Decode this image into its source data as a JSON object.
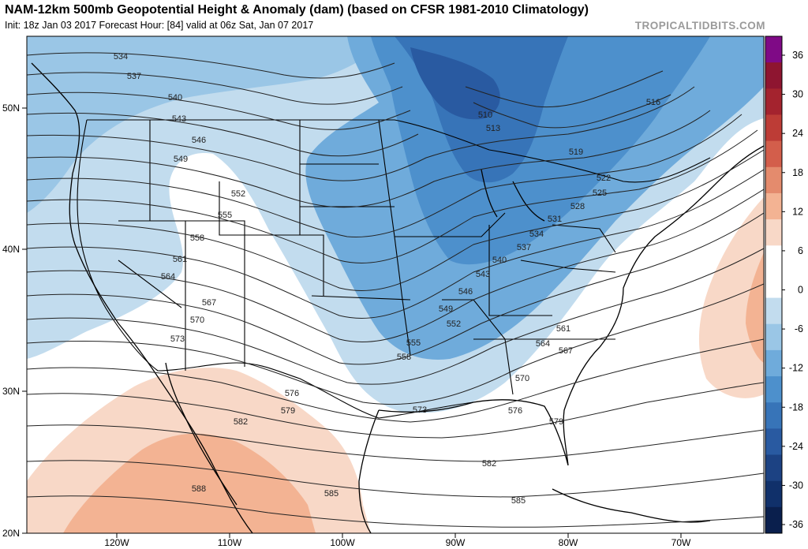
{
  "header": {
    "title": "NAM-12km 500mb Geopotential Height & Anomaly (dam) (based on CFSR 1981-2010 Climatology)",
    "subtitle": "Init: 18z Jan 03 2017   Forecast Hour: [84]   valid at 06z Sat, Jan 07 2017",
    "brand": "TROPICALTIDBITS.COM"
  },
  "axes": {
    "lat_labels": [
      "50N",
      "40N",
      "30N",
      "20N"
    ],
    "lon_labels": [
      "120W",
      "110W",
      "100W",
      "90W",
      "80W",
      "70W"
    ]
  },
  "colorbar": {
    "labels": [
      "36",
      "30",
      "24",
      "18",
      "12",
      "6",
      "0",
      "-6",
      "-12",
      "-18",
      "-24",
      "-30",
      "-36"
    ],
    "colors": [
      "#7f0a86",
      "#8e1530",
      "#a4232e",
      "#bd3c36",
      "#d35e4b",
      "#e48b6d",
      "#f3b393",
      "#f8d8c7",
      "#ffffff",
      "#ffffff",
      "#c2dcee",
      "#9ac6e6",
      "#6fabdb",
      "#4d90cc",
      "#3774b8",
      "#295aa1",
      "#1c4283",
      "#10306a",
      "#0a1f4d"
    ]
  },
  "contour_labels": [
    {
      "text": "534"
    },
    {
      "text": "537"
    },
    {
      "text": "540"
    },
    {
      "text": "543"
    },
    {
      "text": "546"
    },
    {
      "text": "549"
    },
    {
      "text": "552"
    },
    {
      "text": "555"
    },
    {
      "text": "558"
    },
    {
      "text": "561"
    },
    {
      "text": "564"
    },
    {
      "text": "567"
    },
    {
      "text": "570"
    },
    {
      "text": "573"
    },
    {
      "text": "576"
    },
    {
      "text": "579"
    },
    {
      "text": "582"
    },
    {
      "text": "588"
    },
    {
      "text": "585"
    },
    {
      "text": "510"
    },
    {
      "text": "513"
    },
    {
      "text": "516"
    },
    {
      "text": "519"
    },
    {
      "text": "522"
    },
    {
      "text": "525"
    },
    {
      "text": "528"
    },
    {
      "text": "531"
    },
    {
      "text": "534"
    },
    {
      "text": "537"
    },
    {
      "text": "540"
    },
    {
      "text": "543"
    },
    {
      "text": "546"
    },
    {
      "text": "549"
    },
    {
      "text": "552"
    },
    {
      "text": "555"
    },
    {
      "text": "558"
    },
    {
      "text": "561"
    },
    {
      "text": "564"
    },
    {
      "text": "567"
    },
    {
      "text": "570"
    },
    {
      "text": "573"
    },
    {
      "text": "576"
    },
    {
      "text": "579"
    },
    {
      "text": "582"
    },
    {
      "text": "585"
    }
  ]
}
